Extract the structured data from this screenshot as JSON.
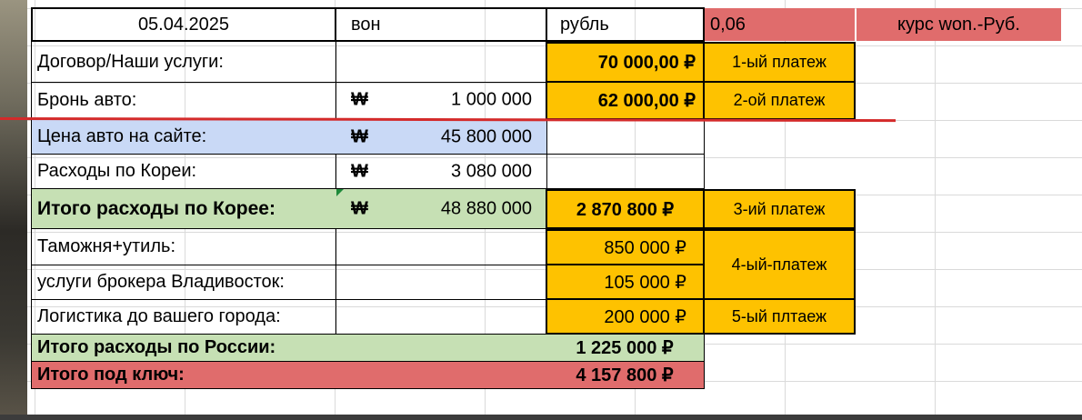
{
  "header": {
    "date": "05.04.2025",
    "won_label": "вон",
    "ruble_label": "рубль",
    "rate_value": "0,06",
    "rate_label": "курс won.-Руб."
  },
  "currency_symbol": "₩",
  "rows": {
    "contract": {
      "label": "Договор/Наши услуги:",
      "rub": "70 000,00 ₽",
      "payment": "1-ый платеж"
    },
    "booking": {
      "label": "Бронь авто:",
      "won": "1 000 000",
      "rub": "62 000,00 ₽",
      "payment": "2-ой платеж"
    },
    "site_price": {
      "label": "Цена авто на сайте:",
      "won": "45 800 000"
    },
    "korea_costs": {
      "label": "Расходы по Кореи:",
      "won": "3 080 000"
    },
    "korea_total": {
      "label": "Итого расходы по Корее:",
      "won": "48 880 000",
      "rub": "2 870 800 ₽",
      "payment": "3-ий платеж"
    },
    "customs": {
      "label": "Таможня+утиль:",
      "rub": "850 000 ₽"
    },
    "broker": {
      "label": "услуги брокера Владивосток:",
      "rub": "105 000 ₽"
    },
    "payment4": "4-ый-платеж",
    "logistics": {
      "label": "Логистика до вашего города:",
      "rub": "200 000 ₽",
      "payment": "5-ый плтаеж"
    },
    "russia_total": {
      "label": "Итого расходы по России:",
      "rub": "1 225 000 ₽"
    },
    "turnkey_total": {
      "label": "Итого под ключ:",
      "rub": "4 157 800 ₽"
    }
  },
  "colors": {
    "yellow": "#fec200",
    "blue": "#c9d9f6",
    "green": "#c6e0b4",
    "red": "#e06c6c",
    "marker": "#d42a2a"
  }
}
